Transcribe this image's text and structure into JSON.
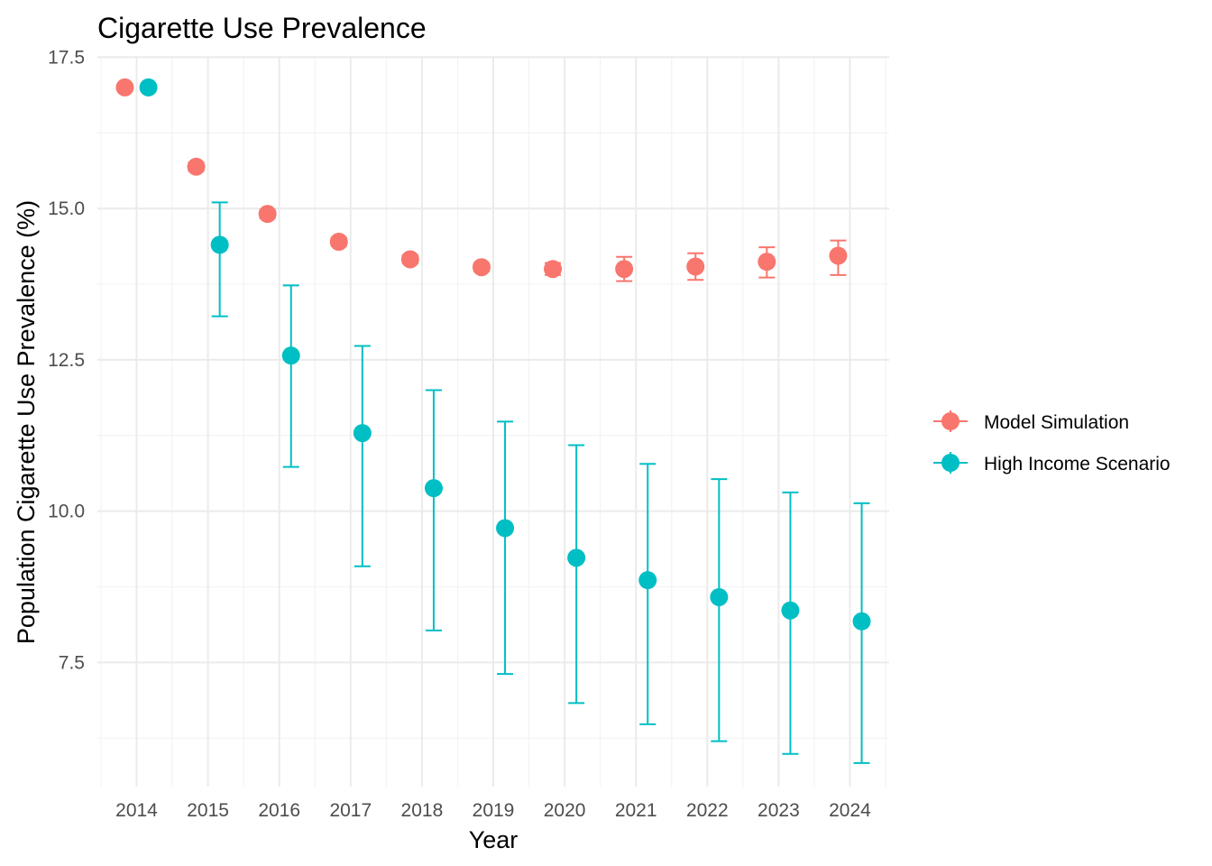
{
  "chart_data": {
    "type": "scatter",
    "title": "Cigarette Use Prevalence",
    "xlabel": "Year",
    "ylabel": "Population Cigarette Use Prevalence (%)",
    "x": [
      2014,
      2015,
      2016,
      2017,
      2018,
      2019,
      2020,
      2021,
      2022,
      2023,
      2024
    ],
    "x_ticks": [
      "2014",
      "2015",
      "2016",
      "2017",
      "2018",
      "2019",
      "2020",
      "2021",
      "2022",
      "2023",
      "2024"
    ],
    "y_ticks": [
      "7.5",
      "10.0",
      "12.5",
      "15.0",
      "17.5"
    ],
    "y_tick_values": [
      7.5,
      10.0,
      12.5,
      15.0,
      17.5
    ],
    "xlim": [
      2013.45,
      2024.55
    ],
    "ylim": [
      5.45,
      17.52
    ],
    "dodge": 0.33,
    "grid": true,
    "legend_position": "right",
    "series": [
      {
        "name": "Model Simulation",
        "color": "#F8766D",
        "values": [
          17.0,
          15.69,
          14.91,
          14.45,
          14.16,
          14.03,
          14.0,
          14.0,
          14.04,
          14.12,
          14.22
        ],
        "lower": [
          17.0,
          15.62,
          14.84,
          14.38,
          14.09,
          13.96,
          13.9,
          13.8,
          13.82,
          13.86,
          13.9
        ],
        "upper": [
          17.0,
          15.76,
          14.98,
          14.52,
          14.23,
          14.1,
          14.1,
          14.2,
          14.26,
          14.36,
          14.47
        ]
      },
      {
        "name": "High Income Scenario",
        "color": "#00BFC4",
        "values": [
          17.0,
          14.4,
          12.57,
          11.29,
          10.38,
          9.72,
          9.23,
          8.86,
          8.58,
          8.36,
          8.18
        ],
        "lower": [
          17.0,
          13.22,
          10.73,
          9.09,
          8.03,
          7.31,
          6.83,
          6.48,
          6.2,
          5.99,
          5.84
        ],
        "upper": [
          17.0,
          15.1,
          13.73,
          12.73,
          12.0,
          11.48,
          11.09,
          10.78,
          10.53,
          10.31,
          10.13
        ]
      }
    ]
  }
}
